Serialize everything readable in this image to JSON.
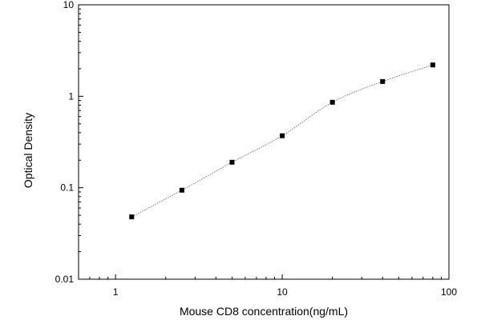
{
  "chart_data": {
    "type": "scatter",
    "title": "",
    "xlabel": "Mouse CD8 concentration(ng/mL)",
    "ylabel": "Optical Density",
    "x_scale": "log",
    "y_scale": "log",
    "xlim": [
      0.6,
      100
    ],
    "ylim": [
      0.01,
      10
    ],
    "grid": false,
    "x_ticks": [
      {
        "value": 1,
        "label": "1"
      },
      {
        "value": 10,
        "label": "10"
      },
      {
        "value": 100,
        "label": "100"
      }
    ],
    "y_ticks": [
      {
        "value": 0.01,
        "label": "0.01"
      },
      {
        "value": 0.1,
        "label": "0.1"
      },
      {
        "value": 1,
        "label": "1"
      },
      {
        "value": 10,
        "label": "10"
      }
    ],
    "series": [
      {
        "x": [
          1.25,
          2.5,
          5,
          10,
          20,
          40,
          80
        ],
        "y": [
          0.048,
          0.094,
          0.19,
          0.37,
          0.86,
          1.45,
          2.2
        ],
        "marker": "square",
        "color": "#000000",
        "fit_line": true
      }
    ]
  }
}
